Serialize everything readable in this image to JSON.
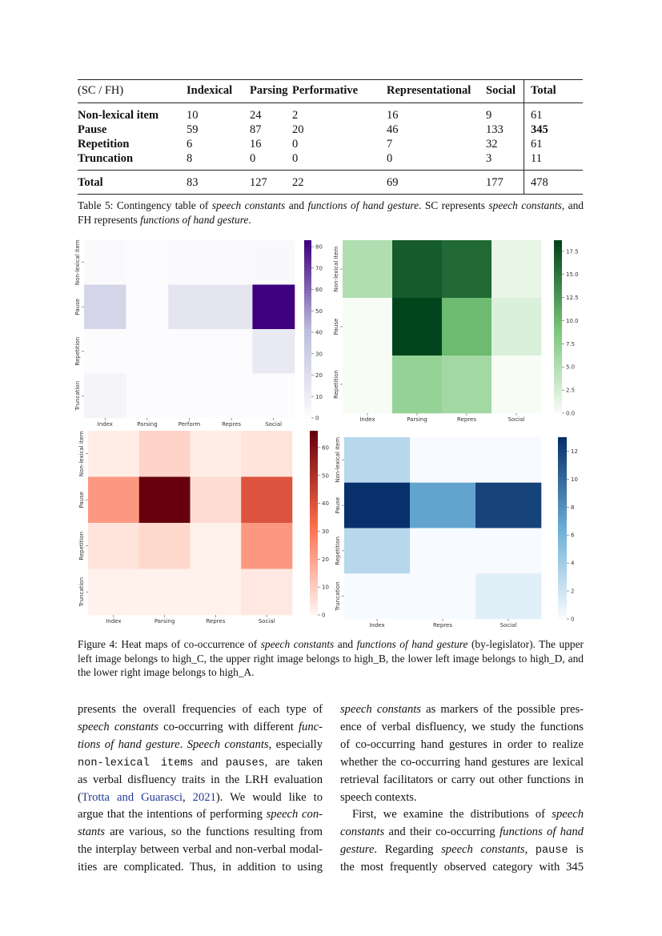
{
  "table": {
    "header": [
      "(SC / FH)",
      "Indexical",
      "Parsing",
      "Performative",
      "Representational",
      "Social",
      "Total"
    ],
    "rows": [
      {
        "label": "Non-lexical item",
        "values": [
          "10",
          "24",
          "2",
          "16",
          "9"
        ],
        "total": "61"
      },
      {
        "label": "Pause",
        "values": [
          "59",
          "87",
          "20",
          "46",
          "133"
        ],
        "total": "345"
      },
      {
        "label": "Repetition",
        "values": [
          "6",
          "16",
          "0",
          "7",
          "32"
        ],
        "total": "61"
      },
      {
        "label": "Truncation",
        "values": [
          "8",
          "0",
          "0",
          "0",
          "3"
        ],
        "total": "11"
      }
    ],
    "footer": {
      "label": "Total",
      "values": [
        "83",
        "127",
        "22",
        "69",
        "177"
      ],
      "total": "478"
    },
    "caption": [
      {
        "t": "Table 5: Contingency table of ",
        "s": ""
      },
      {
        "t": "speech constants",
        "s": "i"
      },
      {
        "t": " and ",
        "s": ""
      },
      {
        "t": "functions of hand gesture",
        "s": "i"
      },
      {
        "t": ". SC represents ",
        "s": ""
      },
      {
        "t": "speech constants",
        "s": "i"
      },
      {
        "t": ", and FH represents ",
        "s": ""
      },
      {
        "t": "functions of hand gesture",
        "s": "i"
      },
      {
        "t": ".",
        "s": ""
      }
    ]
  },
  "chart_data": [
    {
      "type": "heatmap",
      "panel": "upper-left",
      "group": "high_C",
      "colormap": "Purples",
      "colors": [
        "#fcfbfd",
        "#bcbddc",
        "#3f007d"
      ],
      "x_categories": [
        "Index",
        "Parsing",
        "Perform",
        "Repres",
        "Social"
      ],
      "y_categories": [
        "Non-lexical item",
        "Pause",
        "Repetition",
        "Truncation"
      ],
      "values": [
        [
          1,
          0,
          1,
          1,
          2
        ],
        [
          25,
          0,
          15,
          15,
          83
        ],
        [
          0,
          0,
          0,
          0,
          12
        ],
        [
          5,
          0,
          0,
          0,
          0
        ]
      ],
      "vmin": 0,
      "vmax": 83,
      "colorbar_ticks": [
        "0",
        "10",
        "20",
        "30",
        "40",
        "50",
        "60",
        "70",
        "80"
      ]
    },
    {
      "type": "heatmap",
      "panel": "upper-right",
      "group": "high_B",
      "colormap": "Greens",
      "colors": [
        "#f7fcf5",
        "#74c476",
        "#00441b"
      ],
      "x_categories": [
        "Index",
        "Parsing",
        "Repres",
        "Social"
      ],
      "y_categories": [
        "Non-lexical item",
        "Pause",
        "Repetition"
      ],
      "values": [
        [
          5,
          17,
          16,
          1
        ],
        [
          0,
          19,
          10,
          2
        ],
        [
          0,
          7,
          6,
          0
        ]
      ],
      "vmin": 0,
      "vmax": 18.7,
      "colorbar_ticks": [
        "0.0",
        "2.5",
        "5.0",
        "7.5",
        "10.0",
        "12.5",
        "15.0",
        "17.5"
      ]
    },
    {
      "type": "heatmap",
      "panel": "lower-left",
      "group": "high_D",
      "colormap": "Reds",
      "colors": [
        "#fff5f0",
        "#fb6a4a",
        "#67000d"
      ],
      "x_categories": [
        "Index",
        "Parsing",
        "Repres",
        "Social"
      ],
      "y_categories": [
        "Non-lexical item",
        "Pause",
        "Repetition",
        "Truncation"
      ],
      "values": [
        [
          2,
          8,
          2,
          4
        ],
        [
          22,
          66,
          6,
          40
        ],
        [
          4,
          7,
          1,
          22
        ],
        [
          1,
          1,
          1,
          3
        ]
      ],
      "vmin": 0,
      "vmax": 66,
      "colorbar_ticks": [
        "0",
        "10",
        "20",
        "30",
        "40",
        "50",
        "60"
      ]
    },
    {
      "type": "heatmap",
      "panel": "lower-right",
      "group": "high_A",
      "colormap": "Blues",
      "colors": [
        "#f7fbff",
        "#6baed6",
        "#08306b"
      ],
      "x_categories": [
        "Index",
        "Repres",
        "Social"
      ],
      "y_categories": [
        "Non-lexical item",
        "Pause",
        "Repetition",
        "Truncation"
      ],
      "values": [
        [
          3,
          0,
          0
        ],
        [
          13,
          7,
          12
        ],
        [
          3,
          0,
          0
        ],
        [
          0,
          0,
          1
        ]
      ],
      "vmin": 0,
      "vmax": 13,
      "colorbar_ticks": [
        "0",
        "2",
        "4",
        "6",
        "8",
        "10",
        "12"
      ]
    }
  ],
  "figure_caption": [
    {
      "t": "Figure 4: Heat maps of co-occurrence of ",
      "s": ""
    },
    {
      "t": "speech constants",
      "s": "i"
    },
    {
      "t": " and ",
      "s": ""
    },
    {
      "t": "functions of hand gesture",
      "s": "i"
    },
    {
      "t": " (by-legislator). The upper left image belongs to high_C, the upper right image belongs to high_B, the lower left image belongs to high_D, and the lower right image belongs to high_A.",
      "s": ""
    }
  ],
  "body": {
    "left": [
      [
        {
          "t": "presents the overall frequencies of each type of",
          "s": ""
        }
      ],
      [
        {
          "t": "speech constants",
          "s": "i"
        },
        {
          "t": " co-occurring with different ",
          "s": ""
        },
        {
          "t": "func-",
          "s": "i"
        }
      ],
      [
        {
          "t": "tions of hand gesture",
          "s": "i"
        },
        {
          "t": ". ",
          "s": ""
        },
        {
          "t": "Speech constants",
          "s": "i"
        },
        {
          "t": ", especially",
          "s": ""
        }
      ],
      [
        {
          "t": "non-lexical items",
          "s": "m"
        },
        {
          "t": " and ",
          "s": ""
        },
        {
          "t": "pauses",
          "s": "m"
        },
        {
          "t": ", are taken",
          "s": ""
        }
      ],
      [
        {
          "t": "as verbal disfluency traits in the LRH evaluation",
          "s": ""
        }
      ],
      [
        {
          "t": "(",
          "s": ""
        },
        {
          "t": "Trotta and Guarasci",
          "s": "lk"
        },
        {
          "t": ", ",
          "s": ""
        },
        {
          "t": "2021",
          "s": "lk"
        },
        {
          "t": ").  We would like to",
          "s": ""
        }
      ],
      [
        {
          "t": "argue that the intentions of performing ",
          "s": ""
        },
        {
          "t": "speech con-",
          "s": "i"
        }
      ],
      [
        {
          "t": "stants",
          "s": "i"
        },
        {
          "t": " are various, so the functions resulting from",
          "s": ""
        }
      ],
      [
        {
          "t": "the interplay between verbal and non-verbal modal-",
          "s": ""
        }
      ],
      [
        {
          "t": "ities are complicated.  Thus, in addition to using",
          "s": ""
        }
      ]
    ],
    "right": [
      [
        {
          "t": "speech constants",
          "s": "i"
        },
        {
          "t": " as markers of the possible pres-",
          "s": ""
        }
      ],
      [
        {
          "t": "ence of verbal disfluency, we study the functions",
          "s": ""
        }
      ],
      [
        {
          "t": "of co-occurring hand gestures in order to realize",
          "s": ""
        }
      ],
      [
        {
          "t": "whether the co-occurring hand gestures are lexical",
          "s": ""
        }
      ],
      [
        {
          "t": "retrieval facilitators or carry out other functions in",
          "s": ""
        }
      ],
      [
        {
          "t": "speech contexts.",
          "s": ""
        }
      ],
      [
        {
          "t": "First, we examine the distributions of ",
          "s": ""
        },
        {
          "t": "speech",
          "s": "i"
        }
      ],
      [
        {
          "t": "constants",
          "s": "i"
        },
        {
          "t": " and their co-occurring ",
          "s": ""
        },
        {
          "t": "functions of hand",
          "s": "i"
        }
      ],
      [
        {
          "t": "gesture",
          "s": "i"
        },
        {
          "t": ".  Regarding ",
          "s": ""
        },
        {
          "t": "speech constants",
          "s": "i"
        },
        {
          "t": ", ",
          "s": ""
        },
        {
          "t": "pause",
          "s": "m"
        },
        {
          "t": " is",
          "s": ""
        }
      ],
      [
        {
          "t": "the most frequently observed category with 345",
          "s": ""
        }
      ]
    ]
  }
}
